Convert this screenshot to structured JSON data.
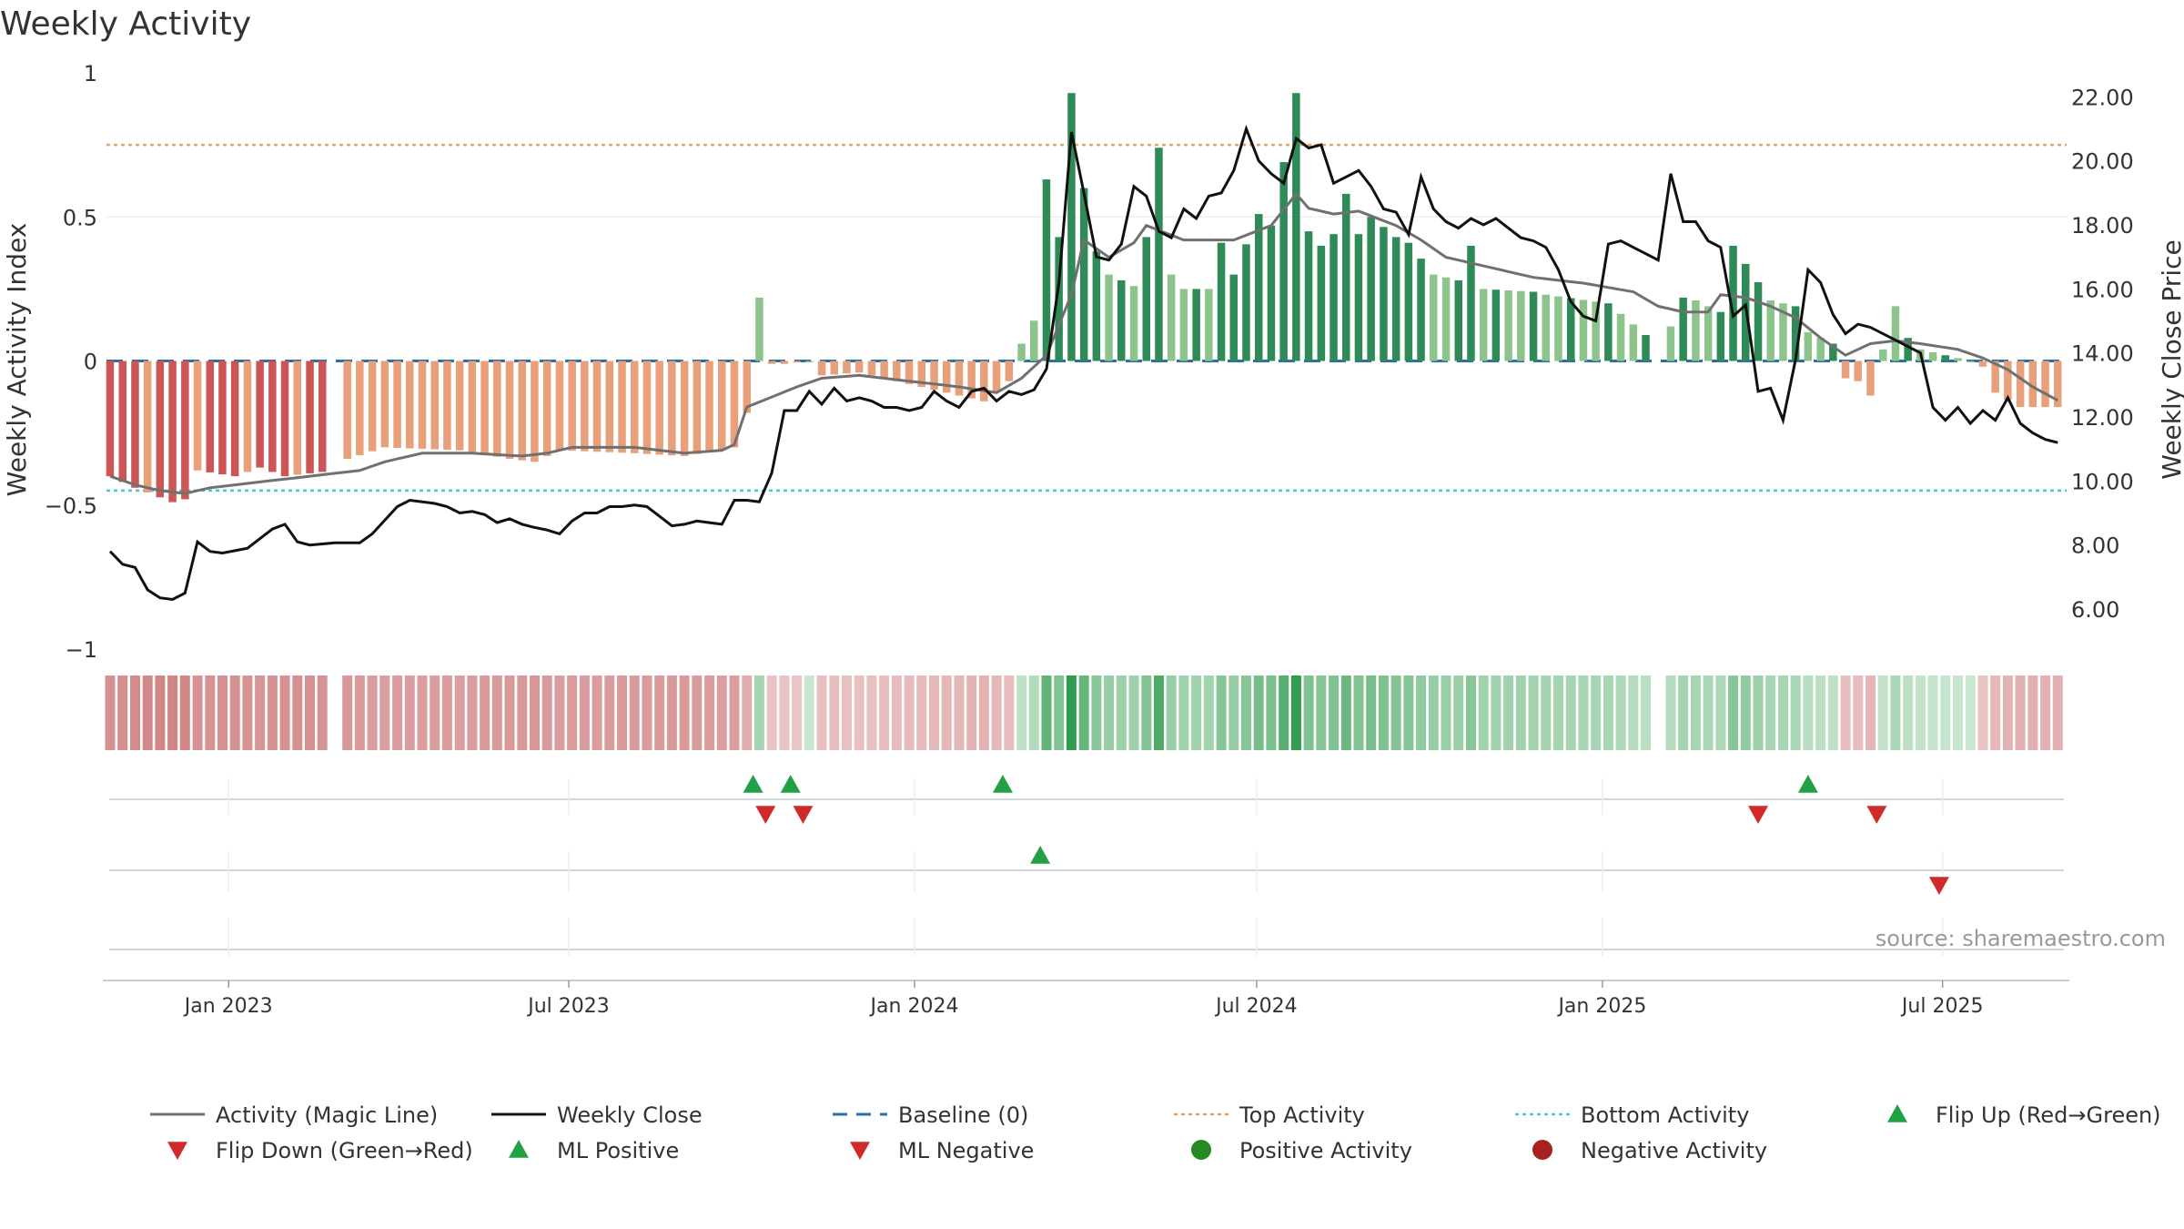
{
  "chart_data": {
    "type": "bar",
    "title": "Weekly Activity",
    "ylabel": "Weekly Activity Index",
    "y2label": "Weekly Close Price",
    "source": "source: sharemaestro.com",
    "ylim": [
      -1,
      1
    ],
    "y2lim": [
      4.75,
      22.75
    ],
    "yticks": [
      {
        "v": 1,
        "label": "1"
      },
      {
        "v": 0.5,
        "label": "0.5"
      },
      {
        "v": 0,
        "label": "0"
      },
      {
        "v": -0.5,
        "label": "−0.5"
      },
      {
        "v": -1,
        "label": "−1"
      }
    ],
    "y2ticks": [
      {
        "v": 22,
        "label": "22.00"
      },
      {
        "v": 20,
        "label": "20.00"
      },
      {
        "v": 18,
        "label": "18.00"
      },
      {
        "v": 16,
        "label": "16.00"
      },
      {
        "v": 14,
        "label": "14.00"
      },
      {
        "v": 12,
        "label": "12.00"
      },
      {
        "v": 10,
        "label": "10.00"
      },
      {
        "v": 8,
        "label": "8.00"
      },
      {
        "v": 6,
        "label": "6.00"
      }
    ],
    "x_start": "2022-10-28",
    "x_end": "2025-09-05",
    "xticks": [
      {
        "date": "2023-01-01",
        "label": "Jan 2023"
      },
      {
        "date": "2023-07-01",
        "label": "Jul 2023"
      },
      {
        "date": "2024-01-01",
        "label": "Jan 2024"
      },
      {
        "date": "2024-07-01",
        "label": "Jul 2024"
      },
      {
        "date": "2025-01-01",
        "label": "Jan 2025"
      },
      {
        "date": "2025-07-01",
        "label": "Jul 2025"
      }
    ],
    "reference_lines": {
      "baseline": 0,
      "top_activity": 0.75,
      "bottom_activity": -0.45
    },
    "activity_keyframes": [
      [
        0,
        -0.4
      ],
      [
        2,
        -0.44
      ],
      [
        5,
        -0.49
      ],
      [
        6,
        -0.48
      ],
      [
        7,
        -0.38
      ],
      [
        10,
        -0.4
      ],
      [
        12,
        -0.37
      ],
      [
        14,
        -0.4
      ],
      [
        18,
        -0.38
      ],
      [
        19,
        -0.34
      ],
      [
        22,
        -0.3
      ],
      [
        28,
        -0.31
      ],
      [
        32,
        -0.34
      ],
      [
        34,
        -0.35
      ],
      [
        36,
        -0.31
      ],
      [
        42,
        -0.32
      ],
      [
        46,
        -0.33
      ],
      [
        50,
        -0.3
      ],
      [
        51,
        -0.18
      ],
      [
        52,
        0.22
      ],
      [
        53,
        -0.01
      ],
      [
        54,
        -0.01
      ],
      [
        56,
        0.0
      ],
      [
        57,
        -0.05
      ],
      [
        60,
        -0.04
      ],
      [
        66,
        -0.1
      ],
      [
        70,
        -0.14
      ],
      [
        72,
        -0.07
      ],
      [
        73,
        0.06
      ],
      [
        74,
        0.14
      ],
      [
        75,
        0.63
      ],
      [
        76,
        0.43
      ],
      [
        77,
        0.93
      ],
      [
        78,
        0.6
      ],
      [
        79,
        0.38
      ],
      [
        80,
        0.3
      ],
      [
        82,
        0.26
      ],
      [
        83,
        0.43
      ],
      [
        84,
        0.74
      ],
      [
        85,
        0.3
      ],
      [
        86,
        0.25
      ],
      [
        88,
        0.25
      ],
      [
        89,
        0.41
      ],
      [
        90,
        0.3
      ],
      [
        92,
        0.51
      ],
      [
        93,
        0.47
      ],
      [
        94,
        0.69
      ],
      [
        95,
        0.93
      ],
      [
        96,
        0.45
      ],
      [
        97,
        0.4
      ],
      [
        98,
        0.44
      ],
      [
        99,
        0.58
      ],
      [
        100,
        0.44
      ],
      [
        101,
        0.5
      ],
      [
        103,
        0.43
      ],
      [
        104,
        0.41
      ],
      [
        106,
        0.3
      ],
      [
        108,
        0.28
      ],
      [
        109,
        0.4
      ],
      [
        110,
        0.25
      ],
      [
        114,
        0.24
      ],
      [
        115,
        0.23
      ],
      [
        120,
        0.2
      ],
      [
        123,
        0.09
      ],
      [
        124,
        0.07
      ],
      [
        125,
        0.12
      ],
      [
        126,
        0.22
      ],
      [
        127,
        0.21
      ],
      [
        129,
        0.17
      ],
      [
        130,
        0.4
      ],
      [
        133,
        0.21
      ],
      [
        135,
        0.19
      ],
      [
        136,
        0.1
      ],
      [
        138,
        0.06
      ],
      [
        139,
        -0.06
      ],
      [
        140,
        -0.07
      ],
      [
        141,
        -0.12
      ],
      [
        142,
        0.04
      ],
      [
        143,
        0.19
      ],
      [
        144,
        0.08
      ],
      [
        145,
        0.04
      ],
      [
        146,
        0.03
      ],
      [
        149,
        0.0
      ],
      [
        150,
        -0.02
      ],
      [
        151,
        -0.11
      ],
      [
        153,
        -0.16
      ],
      [
        156,
        -0.16
      ],
      [
        157,
        -0.21
      ]
    ],
    "activity_gaps": [
      18,
      124
    ],
    "magic_line_keyframes": [
      [
        0,
        -0.4
      ],
      [
        2,
        -0.43
      ],
      [
        4,
        -0.45
      ],
      [
        6,
        -0.46
      ],
      [
        8,
        -0.44
      ],
      [
        14,
        -0.41
      ],
      [
        18,
        -0.39
      ],
      [
        20,
        -0.38
      ],
      [
        22,
        -0.35
      ],
      [
        25,
        -0.32
      ],
      [
        29,
        -0.32
      ],
      [
        33,
        -0.33
      ],
      [
        35,
        -0.32
      ],
      [
        37,
        -0.3
      ],
      [
        42,
        -0.3
      ],
      [
        46,
        -0.32
      ],
      [
        49,
        -0.31
      ],
      [
        50,
        -0.29
      ],
      [
        51,
        -0.16
      ],
      [
        55,
        -0.09
      ],
      [
        57,
        -0.06
      ],
      [
        60,
        -0.05
      ],
      [
        64,
        -0.07
      ],
      [
        68,
        -0.09
      ],
      [
        71,
        -0.11
      ],
      [
        73,
        -0.06
      ],
      [
        75,
        0.02
      ],
      [
        77,
        0.23
      ],
      [
        78,
        0.42
      ],
      [
        80,
        0.36
      ],
      [
        82,
        0.41
      ],
      [
        83,
        0.47
      ],
      [
        86,
        0.42
      ],
      [
        88,
        0.42
      ],
      [
        90,
        0.42
      ],
      [
        93,
        0.47
      ],
      [
        95,
        0.58
      ],
      [
        96,
        0.53
      ],
      [
        98,
        0.51
      ],
      [
        100,
        0.52
      ],
      [
        103,
        0.47
      ],
      [
        105,
        0.42
      ],
      [
        107,
        0.36
      ],
      [
        110,
        0.33
      ],
      [
        114,
        0.29
      ],
      [
        118,
        0.27
      ],
      [
        122,
        0.24
      ],
      [
        124,
        0.19
      ],
      [
        126,
        0.17
      ],
      [
        128,
        0.17
      ],
      [
        129,
        0.23
      ],
      [
        131,
        0.22
      ],
      [
        133,
        0.19
      ],
      [
        135,
        0.15
      ],
      [
        137,
        0.08
      ],
      [
        139,
        0.02
      ],
      [
        141,
        0.06
      ],
      [
        143,
        0.07
      ],
      [
        145,
        0.06
      ],
      [
        148,
        0.04
      ],
      [
        150,
        0.01
      ],
      [
        152,
        -0.03
      ],
      [
        154,
        -0.09
      ],
      [
        157,
        -0.16
      ]
    ],
    "close_keyframes": [
      [
        0,
        7.8
      ],
      [
        1,
        7.4
      ],
      [
        2,
        7.3
      ],
      [
        3,
        6.6
      ],
      [
        4,
        6.35
      ],
      [
        5,
        6.3
      ],
      [
        6,
        6.5
      ],
      [
        7,
        8.1
      ],
      [
        8,
        7.8
      ],
      [
        9,
        7.75
      ],
      [
        11,
        7.9
      ],
      [
        13,
        8.5
      ],
      [
        14,
        8.65
      ],
      [
        15,
        8.1
      ],
      [
        16,
        8.0
      ],
      [
        18,
        8.07
      ],
      [
        20,
        8.07
      ],
      [
        21,
        8.35
      ],
      [
        23,
        9.2
      ],
      [
        24,
        9.4
      ],
      [
        26,
        9.3
      ],
      [
        27,
        9.2
      ],
      [
        28,
        9.0
      ],
      [
        29,
        9.05
      ],
      [
        30,
        8.95
      ],
      [
        31,
        8.7
      ],
      [
        32,
        8.82
      ],
      [
        33,
        8.65
      ],
      [
        34,
        8.55
      ],
      [
        35,
        8.47
      ],
      [
        36,
        8.35
      ],
      [
        37,
        8.75
      ],
      [
        38,
        9.0
      ],
      [
        39,
        9.0
      ],
      [
        40,
        9.2
      ],
      [
        41,
        9.2
      ],
      [
        42,
        9.25
      ],
      [
        43,
        9.2
      ],
      [
        44,
        8.9
      ],
      [
        45,
        8.6
      ],
      [
        46,
        8.65
      ],
      [
        47,
        8.75
      ],
      [
        48,
        8.7
      ],
      [
        49,
        8.65
      ],
      [
        50,
        9.4
      ],
      [
        51,
        9.4
      ],
      [
        52,
        9.35
      ],
      [
        53,
        10.25
      ],
      [
        54,
        12.2
      ],
      [
        55,
        12.2
      ],
      [
        56,
        12.8
      ],
      [
        57,
        12.4
      ],
      [
        58,
        12.9
      ],
      [
        59,
        12.5
      ],
      [
        60,
        12.6
      ],
      [
        61,
        12.5
      ],
      [
        62,
        12.3
      ],
      [
        63,
        12.3
      ],
      [
        64,
        12.2
      ],
      [
        65,
        12.3
      ],
      [
        66,
        12.8
      ],
      [
        67,
        12.5
      ],
      [
        68,
        12.3
      ],
      [
        69,
        12.8
      ],
      [
        70,
        12.9
      ],
      [
        71,
        12.5
      ],
      [
        72,
        12.8
      ],
      [
        73,
        12.7
      ],
      [
        74,
        12.85
      ],
      [
        75,
        13.5
      ],
      [
        76,
        16.2
      ],
      [
        77,
        20.9
      ],
      [
        78,
        19.0
      ],
      [
        79,
        17.0
      ],
      [
        80,
        16.9
      ],
      [
        81,
        17.4
      ],
      [
        82,
        19.2
      ],
      [
        83,
        18.9
      ],
      [
        84,
        17.8
      ],
      [
        85,
        17.6
      ],
      [
        86,
        18.5
      ],
      [
        87,
        18.2
      ],
      [
        88,
        18.9
      ],
      [
        89,
        19.0
      ],
      [
        90,
        19.7
      ],
      [
        91,
        21.0
      ],
      [
        92,
        20.0
      ],
      [
        93,
        19.6
      ],
      [
        94,
        19.3
      ],
      [
        95,
        20.7
      ],
      [
        96,
        20.4
      ],
      [
        97,
        20.5
      ],
      [
        98,
        19.3
      ],
      [
        99,
        19.5
      ],
      [
        100,
        19.7
      ],
      [
        101,
        19.2
      ],
      [
        102,
        18.5
      ],
      [
        103,
        18.4
      ],
      [
        104,
        17.7
      ],
      [
        105,
        19.5
      ],
      [
        106,
        18.5
      ],
      [
        107,
        18.1
      ],
      [
        108,
        17.9
      ],
      [
        109,
        18.2
      ],
      [
        110,
        18.0
      ],
      [
        111,
        18.2
      ],
      [
        112,
        17.9
      ],
      [
        113,
        17.6
      ],
      [
        114,
        17.5
      ],
      [
        115,
        17.3
      ],
      [
        116,
        16.6
      ],
      [
        117,
        15.6
      ],
      [
        118,
        15.15
      ],
      [
        119,
        15.0
      ],
      [
        120,
        17.4
      ],
      [
        121,
        17.5
      ],
      [
        122,
        17.3
      ],
      [
        123,
        17.1
      ],
      [
        124,
        16.9
      ],
      [
        125,
        19.6
      ],
      [
        126,
        18.1
      ],
      [
        127,
        18.1
      ],
      [
        128,
        17.5
      ],
      [
        129,
        17.3
      ],
      [
        130,
        15.15
      ],
      [
        131,
        15.5
      ],
      [
        132,
        12.8
      ],
      [
        133,
        12.9
      ],
      [
        134,
        11.9
      ],
      [
        135,
        13.8
      ],
      [
        136,
        16.6
      ],
      [
        137,
        16.2
      ],
      [
        138,
        15.2
      ],
      [
        139,
        14.6
      ],
      [
        140,
        14.9
      ],
      [
        141,
        14.8
      ],
      [
        142,
        14.6
      ],
      [
        143,
        14.4
      ],
      [
        144,
        14.2
      ],
      [
        145,
        14.0
      ],
      [
        146,
        12.3
      ],
      [
        147,
        11.9
      ],
      [
        148,
        12.3
      ],
      [
        149,
        11.8
      ],
      [
        150,
        12.2
      ],
      [
        151,
        11.9
      ],
      [
        152,
        12.6
      ],
      [
        153,
        11.8
      ],
      [
        154,
        11.5
      ],
      [
        155,
        11.3
      ],
      [
        156,
        11.2
      ]
    ],
    "flip_up_1": [
      51.5,
      54.5,
      71.5,
      136
    ],
    "flip_down_1": [
      52.5,
      55.5,
      132,
      141.5
    ],
    "flip_up_2": [
      74.5
    ],
    "flip_down_2": [
      146.5
    ],
    "legend": [
      {
        "label": "Activity (Magic Line)",
        "kind": "line",
        "color": "#707070"
      },
      {
        "label": "Weekly Close",
        "kind": "line",
        "color": "#111111"
      },
      {
        "label": "Baseline (0)",
        "kind": "dash",
        "color": "#2a6fa8"
      },
      {
        "label": "Top Activity",
        "kind": "dot",
        "color": "#e8a060"
      },
      {
        "label": "Bottom Activity",
        "kind": "dot",
        "color": "#3cc8d8"
      },
      {
        "label": "Flip Up (Red→Green)",
        "kind": "up",
        "color": "#22a045"
      },
      {
        "label": "Flip Down (Green→Red)",
        "kind": "down",
        "color": "#d02a2a"
      },
      {
        "label": "ML Positive",
        "kind": "up",
        "color": "#22a045"
      },
      {
        "label": "ML Negative",
        "kind": "down",
        "color": "#d02a2a"
      },
      {
        "label": "Positive Activity",
        "kind": "circle",
        "color": "#248a24"
      },
      {
        "label": "Negative Activity",
        "kind": "circle",
        "color": "#a82020"
      }
    ],
    "colors": {
      "pos_dark": "#2e8b57",
      "pos_light": "#8cc48c",
      "neg_dark": "#cc5555",
      "neg_light": "#e8a07a",
      "close": "#111111",
      "magic": "#707070",
      "top": "#e8a060",
      "bottom": "#3cc8d8",
      "baseline": "#2a6fa8",
      "up": "#22a045",
      "down": "#d02a2a",
      "source": "#999999"
    }
  }
}
